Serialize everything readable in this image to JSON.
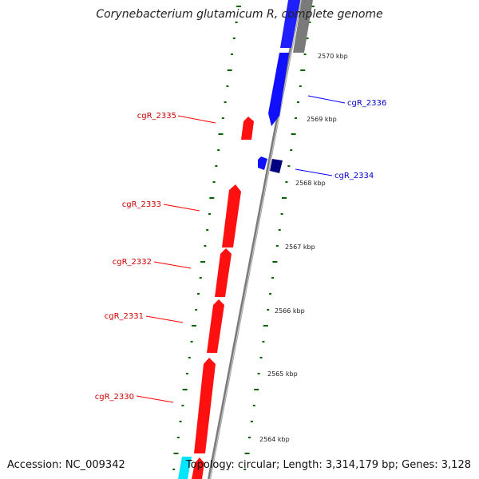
{
  "header": {
    "title": "Corynebacterium glutamicum R, complete genome"
  },
  "footer": {
    "accession": "Accession: NC_009342",
    "summary": "Topology: circular; Length: 3,314,179 bp; Genes: 3,128"
  },
  "colors": {
    "forward_gene": "#ff0000",
    "reverse_gene": "#0000ff",
    "reverse_gene_dark": "#000080",
    "other_feature": "#808080",
    "partial_feature": "#00ffff",
    "tick": "#006600"
  },
  "ruler": {
    "unit": "kbp",
    "labels": [
      "2570 kbp",
      "2569 kbp",
      "2568 kbp",
      "2567 kbp",
      "2566 kbp",
      "2565 kbp",
      "2564 kbp"
    ]
  },
  "genes": [
    {
      "label": "cgR_2336",
      "strand": "reverse"
    },
    {
      "label": "cgR_2335",
      "strand": "forward"
    },
    {
      "label": "cgR_2334",
      "strand": "reverse"
    },
    {
      "label": "cgR_2333",
      "strand": "forward"
    },
    {
      "label": "cgR_2332",
      "strand": "forward"
    },
    {
      "label": "cgR_2331",
      "strand": "forward"
    },
    {
      "label": "cgR_2330",
      "strand": "forward"
    }
  ]
}
